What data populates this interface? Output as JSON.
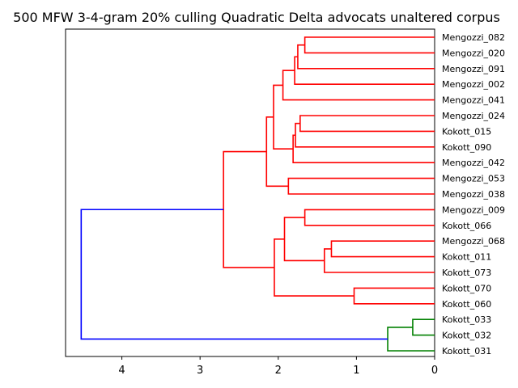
{
  "chart_data": {
    "type": "dendrogram",
    "title": "500 MFW 3-4-gram 20% culling Quadratic Delta advocats unaltered corpus",
    "orientation": "left",
    "x_ticks": [
      4,
      3,
      2,
      1,
      0
    ],
    "xlim": [
      4.72,
      0
    ],
    "leaves": [
      "Mengozzi_082",
      "Mengozzi_020",
      "Mengozzi_091",
      "Mengozzi_002",
      "Mengozzi_041",
      "Mengozzi_024",
      "Kokott_015",
      "Kokott_090",
      "Mengozzi_042",
      "Mengozzi_053",
      "Mengozzi_038",
      "Mengozzi_009",
      "Kokott_066",
      "Mengozzi_068",
      "Kokott_011",
      "Kokott_073",
      "Kokott_070",
      "Kokott_060",
      "Kokott_033",
      "Kokott_032",
      "Kokott_031"
    ],
    "colors": {
      "red_cluster": "#ff0000",
      "green_cluster": "#008000",
      "root": "#0000ff"
    },
    "merges": [
      {
        "id": "A",
        "a": "Mengozzi_082",
        "b": "Mengozzi_020",
        "height": 1.66,
        "color": "#ff0000"
      },
      {
        "id": "B",
        "a": "A",
        "b": "Mengozzi_091",
        "height": 1.75,
        "color": "#ff0000"
      },
      {
        "id": "C",
        "a": "B",
        "b": "Mengozzi_002",
        "height": 1.79,
        "color": "#ff0000"
      },
      {
        "id": "D",
        "a": "C",
        "b": "Mengozzi_041",
        "height": 1.94,
        "color": "#ff0000"
      },
      {
        "id": "E",
        "a": "Mengozzi_024",
        "b": "Kokott_015",
        "height": 1.72,
        "color": "#ff0000"
      },
      {
        "id": "F",
        "a": "E",
        "b": "Kokott_090",
        "height": 1.78,
        "color": "#ff0000"
      },
      {
        "id": "G",
        "a": "F",
        "b": "Mengozzi_042",
        "height": 1.81,
        "color": "#ff0000"
      },
      {
        "id": "H",
        "a": "D",
        "b": "G",
        "height": 2.06,
        "color": "#ff0000"
      },
      {
        "id": "I",
        "a": "Mengozzi_053",
        "b": "Mengozzi_038",
        "height": 1.87,
        "color": "#ff0000"
      },
      {
        "id": "J",
        "a": "H",
        "b": "I",
        "height": 2.15,
        "color": "#ff0000"
      },
      {
        "id": "K",
        "a": "Mengozzi_009",
        "b": "Kokott_066",
        "height": 1.66,
        "color": "#ff0000"
      },
      {
        "id": "L",
        "a": "Mengozzi_068",
        "b": "Kokott_011",
        "height": 1.32,
        "color": "#ff0000"
      },
      {
        "id": "M",
        "a": "L",
        "b": "Kokott_073",
        "height": 1.41,
        "color": "#ff0000"
      },
      {
        "id": "N",
        "a": "K",
        "b": "M",
        "height": 1.92,
        "color": "#ff0000"
      },
      {
        "id": "O",
        "a": "Kokott_070",
        "b": "Kokott_060",
        "height": 1.03,
        "color": "#ff0000"
      },
      {
        "id": "P",
        "a": "N",
        "b": "O",
        "height": 2.05,
        "color": "#ff0000"
      },
      {
        "id": "Q",
        "a": "J",
        "b": "P",
        "height": 2.7,
        "color": "#ff0000"
      },
      {
        "id": "R",
        "a": "Kokott_033",
        "b": "Kokott_032",
        "height": 0.28,
        "color": "#008000"
      },
      {
        "id": "S",
        "a": "R",
        "b": "Kokott_031",
        "height": 0.6,
        "color": "#008000"
      },
      {
        "id": "T",
        "a": "Q",
        "b": "S",
        "height": 4.52,
        "color": "#0000ff"
      }
    ]
  }
}
